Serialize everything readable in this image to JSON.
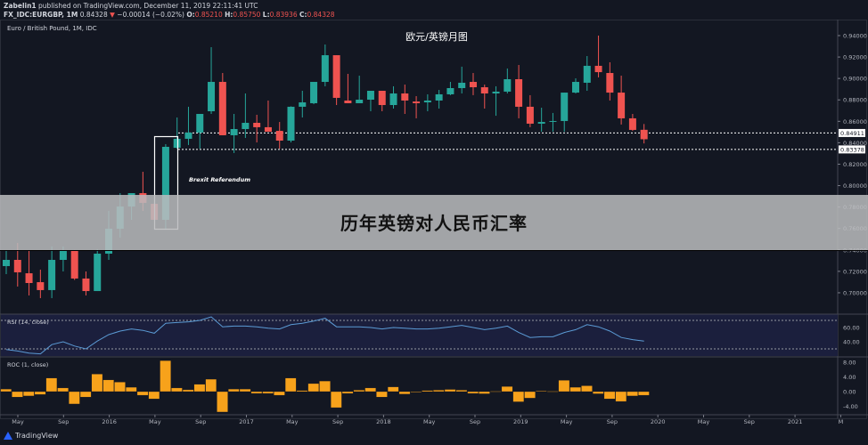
{
  "header": {
    "author": "Zabelin1",
    "published": "published on TradingView.com, December 11, 2019 22:11:41 UTC",
    "symbol": "FX_IDC:EURGBP, 1M",
    "last": "0.84328",
    "change_icon": "triangle-down-icon",
    "change_glyph": "▼",
    "change": "−0.00014 (−0.02%)",
    "o_label": "O:",
    "o": "0.85210",
    "h_label": "H:",
    "h": "0.85750",
    "l_label": "L:",
    "l": "0.83936",
    "c_label": "C:",
    "c": "0.84328"
  },
  "band_text": "历年英镑对人民币汇率",
  "footer": {
    "brand": "TradingView",
    "logo_icon": "tradingview-logo-icon"
  },
  "colors": {
    "up": "#26a69a",
    "down": "#ef5350",
    "background": "#131722",
    "rsi": "#5b9bd5",
    "roc": "#f7a21b"
  },
  "chart_data": [
    {
      "type": "candlestick",
      "legend": "Euro / British Pound, 1M, IDC",
      "title": "欧元/英镑月图",
      "ylim": [
        0.69,
        0.945
      ],
      "yticks": [
        "0.94000",
        "0.92000",
        "0.90000",
        "0.88000",
        "0.86000",
        "0.84000",
        "0.82000",
        "0.80000",
        "0.78000",
        "0.76000",
        "0.74000",
        "0.72000",
        "0.70000"
      ],
      "xticks": [
        "May",
        "Sep",
        "2016",
        "May",
        "Sep",
        "2017",
        "May",
        "Sep",
        "2018",
        "May",
        "Sep",
        "2019",
        "May",
        "Sep",
        "2020",
        "May",
        "Sep",
        "2021",
        "M"
      ],
      "levels": [
        {
          "value": 0.84911,
          "label": "0.84911"
        },
        {
          "value": 0.83378,
          "label": "0.83378"
        }
      ],
      "annotation": {
        "text": "Brexit Referendum"
      },
      "ohlc": [
        [
          0.7249,
          0.739,
          0.7174,
          0.7307
        ],
        [
          0.7307,
          0.7465,
          0.7058,
          0.7191
        ],
        [
          0.7182,
          0.739,
          0.6975,
          0.7091
        ],
        [
          0.7099,
          0.7216,
          0.695,
          0.7025
        ],
        [
          0.7025,
          0.7432,
          0.695,
          0.7307
        ],
        [
          0.7307,
          0.7432,
          0.7199,
          0.739
        ],
        [
          0.739,
          0.74,
          0.712,
          0.7133
        ],
        [
          0.7133,
          0.7199,
          0.6975,
          0.7016
        ],
        [
          0.7016,
          0.7407,
          0.7016,
          0.7365
        ],
        [
          0.7365,
          0.7764,
          0.7307,
          0.7598
        ],
        [
          0.7598,
          0.793,
          0.7515,
          0.7805
        ],
        [
          0.7805,
          0.793,
          0.7681,
          0.793
        ],
        [
          0.793,
          0.8129,
          0.7764,
          0.7839
        ],
        [
          0.783,
          0.7835,
          0.7681,
          0.7681
        ],
        [
          0.7681,
          0.8387,
          0.7598,
          0.8362
        ],
        [
          0.8353,
          0.8636,
          0.8345,
          0.8437
        ],
        [
          0.8437,
          0.8736,
          0.8379,
          0.8495
        ],
        [
          0.8495,
          0.8669,
          0.8345,
          0.8669
        ],
        [
          0.8694,
          0.9292,
          0.8669,
          0.8968
        ],
        [
          0.8968,
          0.9051,
          0.847,
          0.847
        ],
        [
          0.847,
          0.8669,
          0.8304,
          0.8528
        ],
        [
          0.8528,
          0.886,
          0.8445,
          0.8586
        ],
        [
          0.8586,
          0.8661,
          0.8403,
          0.8545
        ],
        [
          0.8545,
          0.8794,
          0.8503,
          0.8503
        ],
        [
          0.8511,
          0.8594,
          0.8345,
          0.842
        ],
        [
          0.842,
          0.874,
          0.8403,
          0.8736
        ],
        [
          0.8736,
          0.8885,
          0.8636,
          0.8777
        ],
        [
          0.8769,
          0.8968,
          0.876,
          0.8968
        ],
        [
          0.8968,
          0.9317,
          0.8927,
          0.9217
        ],
        [
          0.9217,
          0.9217,
          0.8752,
          0.8819
        ],
        [
          0.8794,
          0.9043,
          0.8769,
          0.8769
        ],
        [
          0.8769,
          0.9026,
          0.8769,
          0.8802
        ],
        [
          0.8802,
          0.8885,
          0.8694,
          0.8885
        ],
        [
          0.8885,
          0.8885,
          0.8694,
          0.8752
        ],
        [
          0.8752,
          0.8927,
          0.8719,
          0.886
        ],
        [
          0.886,
          0.8943,
          0.8669,
          0.8794
        ],
        [
          0.8785,
          0.8835,
          0.8628,
          0.8769
        ],
        [
          0.8777,
          0.8852,
          0.8694,
          0.8794
        ],
        [
          0.8794,
          0.8893,
          0.8719,
          0.8852
        ],
        [
          0.8852,
          0.8968,
          0.8844,
          0.891
        ],
        [
          0.891,
          0.911,
          0.886,
          0.896
        ],
        [
          0.8968,
          0.9051,
          0.8844,
          0.8918
        ],
        [
          0.8918,
          0.8943,
          0.8719,
          0.886
        ],
        [
          0.886,
          0.8927,
          0.8652,
          0.8877
        ],
        [
          0.8877,
          0.9093,
          0.886,
          0.8993
        ],
        [
          0.8993,
          0.9126,
          0.8628,
          0.8736
        ],
        [
          0.8736,
          0.8844,
          0.8545,
          0.8578
        ],
        [
          0.8578,
          0.8727,
          0.8503,
          0.8594
        ],
        [
          0.8603,
          0.8678,
          0.8503,
          0.8603
        ],
        [
          0.8603,
          0.8868,
          0.8503,
          0.8868
        ],
        [
          0.8868,
          0.9001,
          0.886,
          0.8968
        ],
        [
          0.896,
          0.9209,
          0.8885,
          0.9118
        ],
        [
          0.9118,
          0.94,
          0.901,
          0.9059
        ],
        [
          0.9051,
          0.9151,
          0.8794,
          0.8868
        ],
        [
          0.8868,
          0.9026,
          0.857,
          0.8628
        ],
        [
          0.8628,
          0.8669,
          0.8511,
          0.852
        ],
        [
          0.8521,
          0.8575,
          0.83936,
          0.84328
        ]
      ]
    },
    {
      "type": "line",
      "legend": "RSI (14, close)",
      "yticks": [
        "60.00",
        "40.00"
      ],
      "bands": [
        70,
        30
      ],
      "values": [
        29,
        27,
        24,
        23,
        36,
        40,
        34,
        30,
        41,
        50,
        55,
        58,
        56,
        52,
        66,
        67,
        68,
        70,
        75,
        61,
        62,
        62,
        61,
        59,
        58,
        64,
        66,
        69,
        73,
        61,
        61,
        61,
        60,
        58,
        60,
        59,
        58,
        58,
        59,
        61,
        63,
        60,
        57,
        59,
        62,
        53,
        46,
        47,
        47,
        53,
        57,
        64,
        61,
        55,
        46,
        43,
        41
      ]
    },
    {
      "type": "bar",
      "legend": "ROC (1, close)",
      "yticks": [
        "8.00",
        "4.00",
        "0.00",
        "-4.00"
      ],
      "values": [
        0.7,
        -1.5,
        -1.2,
        -0.8,
        3.7,
        1.0,
        -3.4,
        -1.5,
        4.8,
        3.2,
        2.6,
        1.2,
        -1.0,
        -2.0,
        8.5,
        1.0,
        0.5,
        2.0,
        3.4,
        -5.6,
        0.7,
        0.7,
        -0.5,
        -0.5,
        -1.0,
        3.7,
        0.3,
        2.2,
        2.9,
        -4.4,
        -0.5,
        0.4,
        1.0,
        -1.5,
        1.3,
        -0.7,
        -0.2,
        0.3,
        0.4,
        0.6,
        0.4,
        -0.5,
        -0.6,
        0.1,
        1.4,
        -2.8,
        -1.8,
        0.2,
        0.1,
        3.1,
        1.2,
        1.6,
        -0.6,
        -2.0,
        -2.7,
        -1.2,
        -1.0
      ]
    }
  ]
}
